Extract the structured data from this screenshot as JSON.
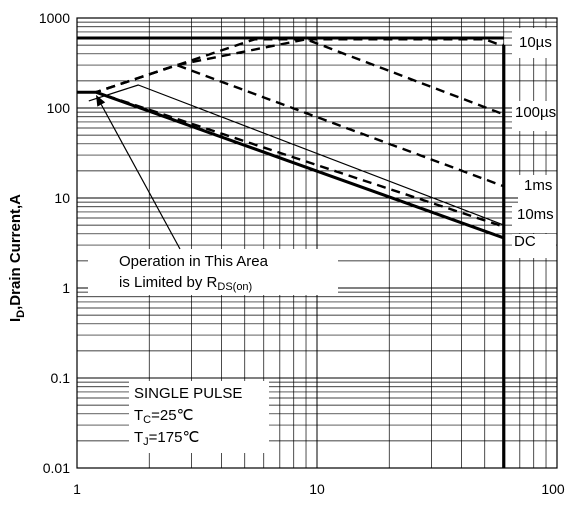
{
  "chart_data": {
    "type": "line",
    "title": "",
    "ylabel": {
      "prefix": "I",
      "subscript": "D",
      "suffix": ",Drain Current,A"
    },
    "xlabel": "",
    "xscale": "log",
    "yscale": "log",
    "xlim": [
      1,
      100
    ],
    "ylim": [
      0.01,
      1000
    ],
    "grid": true,
    "x_tick_labels": [
      "1",
      "10",
      "100"
    ],
    "y_tick_labels": [
      "1000",
      "100",
      "10",
      "1",
      "0.1",
      "0.01"
    ],
    "rds_limit_line": {
      "style": "solid",
      "x": [
        1.12,
        1.8,
        60
      ],
      "y": [
        120,
        180,
        5
      ]
    },
    "series": [
      {
        "name": "10µs",
        "style": "dashed",
        "x": [
          1.0,
          1.2,
          5.5,
          50,
          56,
          60
        ],
        "y": [
          150,
          150,
          580,
          580,
          520,
          500
        ]
      },
      {
        "name": "100µs",
        "style": "dashed",
        "x": [
          1.0,
          1.2,
          2.6,
          9.0,
          60
        ],
        "y": [
          150,
          150,
          300,
          580,
          85
        ]
      },
      {
        "name": "1ms",
        "style": "dashed",
        "x": [
          1.0,
          1.2,
          2.6,
          60
        ],
        "y": [
          150,
          150,
          300,
          13.5
        ]
      },
      {
        "name": "10ms",
        "style": "dashed",
        "x": [
          1.0,
          1.2,
          60
        ],
        "y": [
          150,
          150,
          4.8
        ]
      },
      {
        "name": "DC",
        "style": "solid",
        "x": [
          1.0,
          1.2,
          60
        ],
        "y": [
          150,
          150,
          3.6
        ]
      }
    ],
    "current_limit": {
      "y": 600,
      "x_range": [
        1,
        60
      ],
      "style": "solid"
    },
    "voltage_limit": {
      "x": 60,
      "y_range": [
        0.01,
        500
      ],
      "style": "solid"
    },
    "annotation": {
      "line1": "Operation in This Area",
      "line2_prefix": "is Limited by R",
      "line2_sub": "DS(on)",
      "arrow_target": {
        "x": 1.2,
        "y": 140
      }
    },
    "conditions": {
      "line1": "SINGLE PULSE",
      "line2_main": "T",
      "line2_sub": "C",
      "line2_rest": "=25℃",
      "line3_main": "T",
      "line3_sub": "J",
      "line3_rest": "=175℃"
    }
  }
}
